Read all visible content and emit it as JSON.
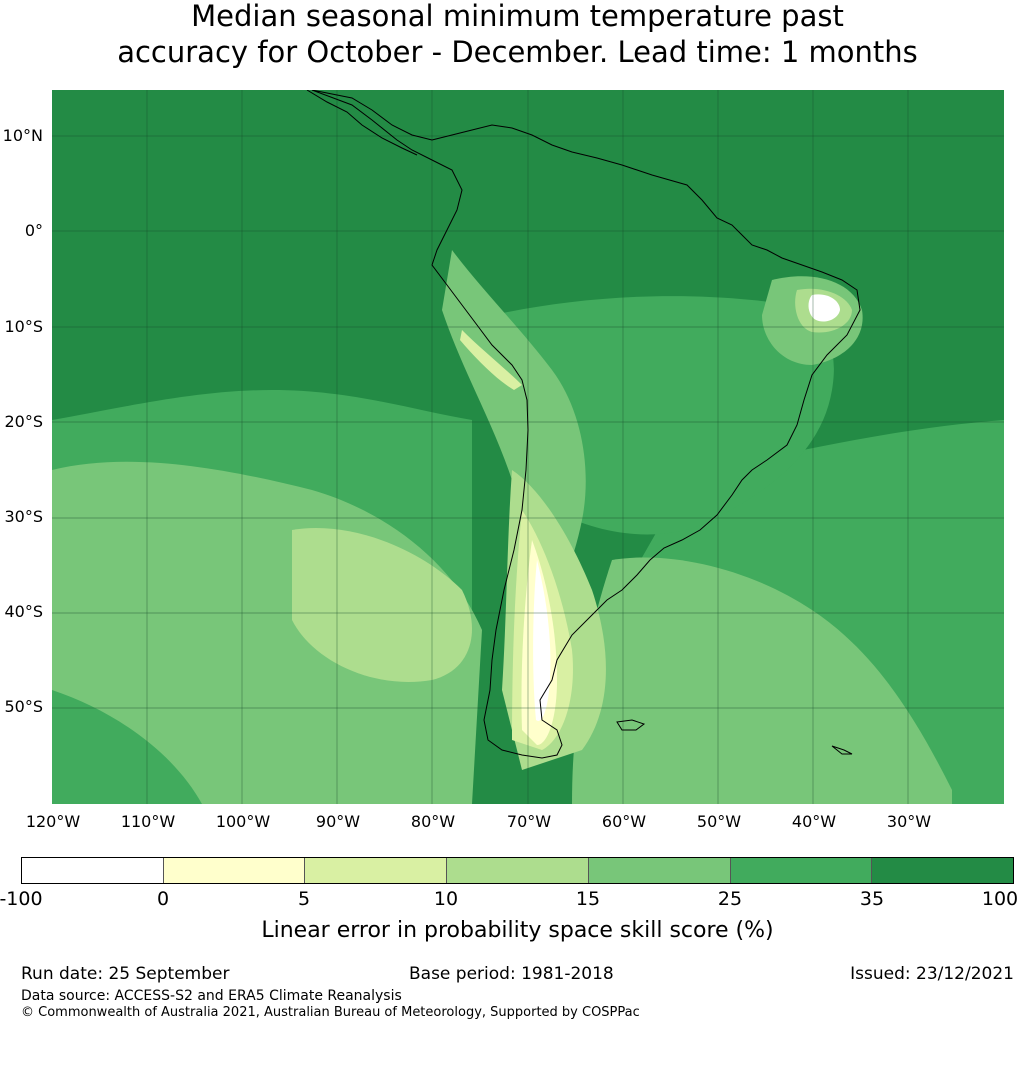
{
  "title": {
    "line1": "Median seasonal minimum temperature past",
    "line2": "accuracy for October - December. Lead time: 1 months"
  },
  "map": {
    "lat_labels": [
      "10°N",
      "0°",
      "10°S",
      "20°S",
      "30°S",
      "40°S",
      "50°S"
    ],
    "lon_labels": [
      "120°W",
      "110°W",
      "100°W",
      "90°W",
      "80°W",
      "70°W",
      "60°W",
      "50°W",
      "40°W",
      "30°W"
    ],
    "background_color": "#238b45",
    "land_outline_color": "#000000"
  },
  "colorbar": {
    "ticks": [
      "-100",
      "0",
      "5",
      "10",
      "15",
      "25",
      "35",
      "100"
    ],
    "colors": [
      "#ffffff",
      "#ffffcc",
      "#d9f0a3",
      "#addd8e",
      "#78c679",
      "#41ab5d",
      "#238b45"
    ],
    "label": "Linear error in probability space skill score (%)"
  },
  "footer": {
    "run_date": "Run date: 25 September",
    "base_period": "Base period: 1981-2018",
    "issued": "Issued: 23/12/2021",
    "data_source": "Data source: ACCESS-S2 and ERA5 Climate Reanalysis",
    "copyright": "© Commonwealth of Australia 2021, Australian Bureau of Meteorology, Supported by COSPPac"
  }
}
